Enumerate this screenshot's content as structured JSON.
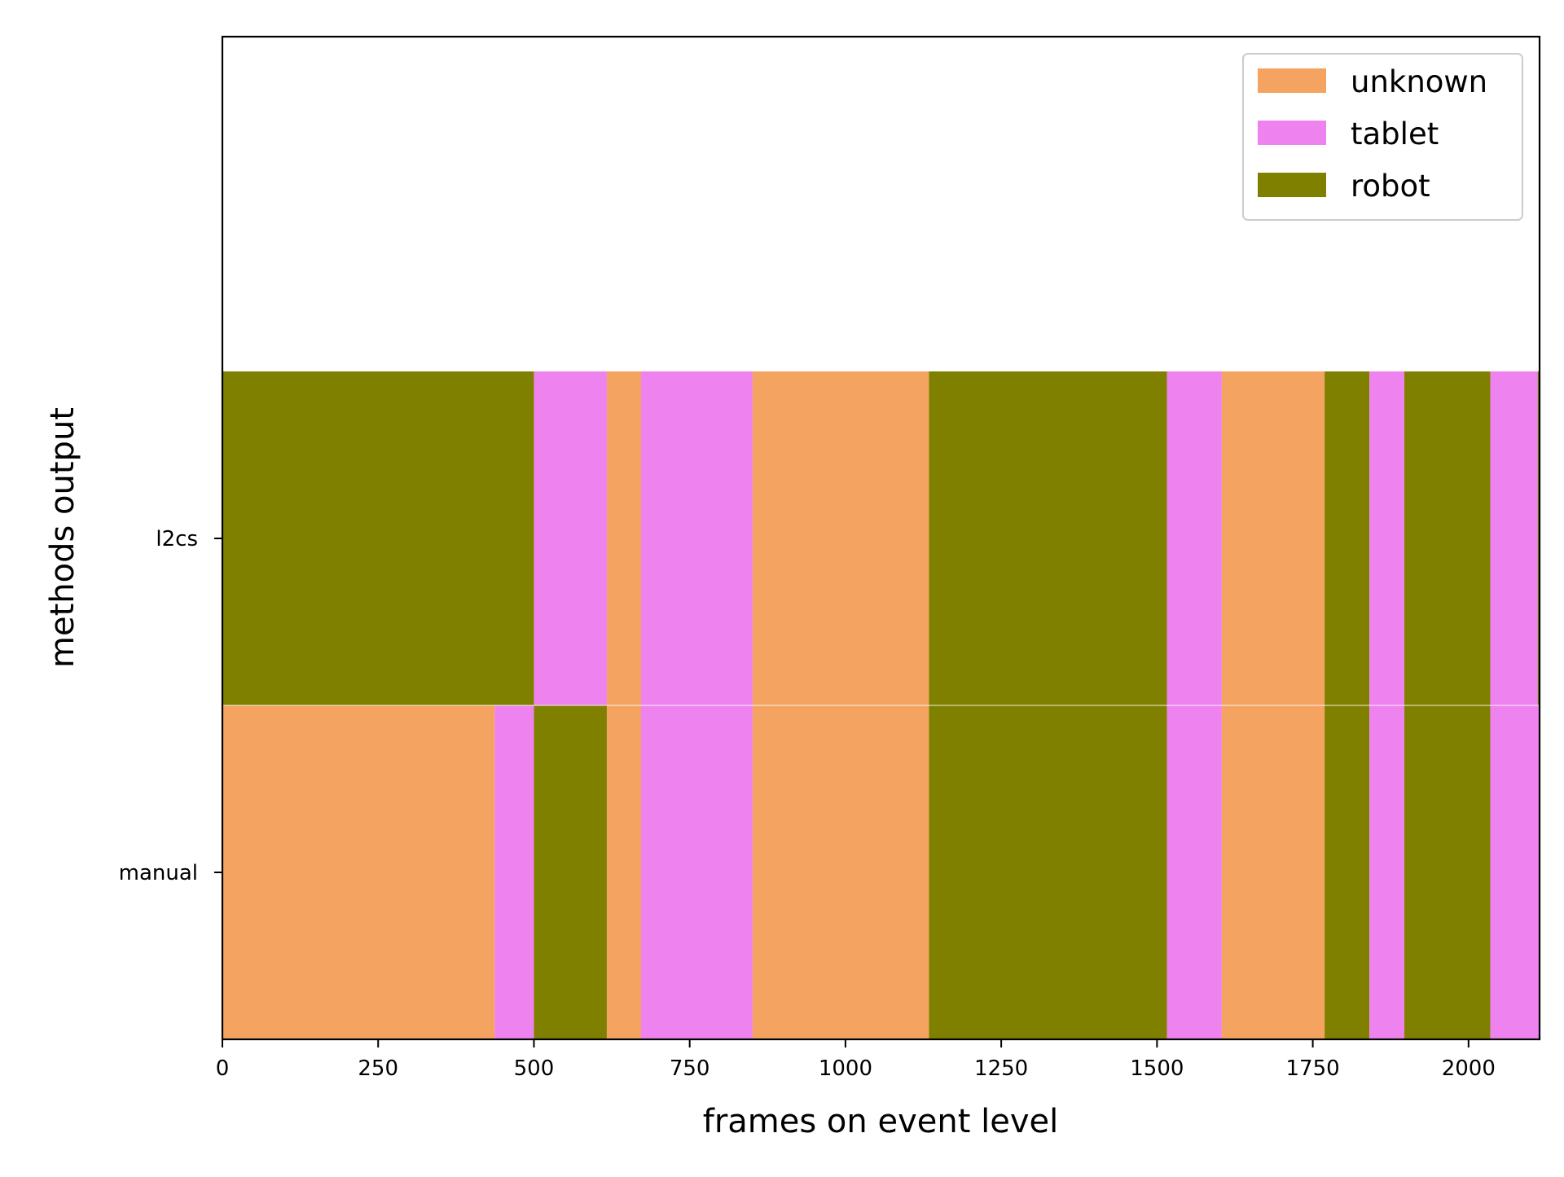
{
  "chart_data": {
    "type": "bar",
    "orientation": "horizontal-stacked-timeline",
    "title": "",
    "xlabel": "frames on event level",
    "ylabel": "methods output",
    "xlim": [
      0,
      2114
    ],
    "xticks": [
      0,
      250,
      500,
      750,
      1000,
      1250,
      1500,
      1750,
      2000
    ],
    "xtick_labels": [
      "0",
      "250",
      "500",
      "750",
      "1000",
      "1250",
      "1500",
      "1750",
      "2000"
    ],
    "categories": [
      "manual",
      "l2cs"
    ],
    "colors": {
      "unknown": "#F4A460",
      "tablet": "#EE82EE",
      "robot": "#808000"
    },
    "legend": {
      "placement": "top-right",
      "entries": [
        "unknown",
        "tablet",
        "robot"
      ]
    },
    "series": [
      {
        "name": "manual",
        "segments": [
          {
            "label": "unknown",
            "start": 0,
            "end": 437
          },
          {
            "label": "tablet",
            "start": 437,
            "end": 500
          },
          {
            "label": "robot",
            "start": 500,
            "end": 617
          },
          {
            "label": "unknown",
            "start": 617,
            "end": 672
          },
          {
            "label": "tablet",
            "start": 672,
            "end": 851
          },
          {
            "label": "unknown",
            "start": 851,
            "end": 1134
          },
          {
            "label": "robot",
            "start": 1134,
            "end": 1516
          },
          {
            "label": "tablet",
            "start": 1516,
            "end": 1604
          },
          {
            "label": "unknown",
            "start": 1604,
            "end": 1769
          },
          {
            "label": "robot",
            "start": 1769,
            "end": 1841
          },
          {
            "label": "tablet",
            "start": 1841,
            "end": 1897
          },
          {
            "label": "robot",
            "start": 1897,
            "end": 2035
          },
          {
            "label": "tablet",
            "start": 2035,
            "end": 2114
          }
        ]
      },
      {
        "name": "l2cs",
        "segments": [
          {
            "label": "robot",
            "start": 0,
            "end": 500
          },
          {
            "label": "tablet",
            "start": 500,
            "end": 617
          },
          {
            "label": "unknown",
            "start": 617,
            "end": 672
          },
          {
            "label": "tablet",
            "start": 672,
            "end": 851
          },
          {
            "label": "unknown",
            "start": 851,
            "end": 1134
          },
          {
            "label": "robot",
            "start": 1134,
            "end": 1516
          },
          {
            "label": "tablet",
            "start": 1516,
            "end": 1604
          },
          {
            "label": "unknown",
            "start": 1604,
            "end": 1769
          },
          {
            "label": "robot",
            "start": 1769,
            "end": 1841
          },
          {
            "label": "tablet",
            "start": 1841,
            "end": 1897
          },
          {
            "label": "robot",
            "start": 1897,
            "end": 2035
          },
          {
            "label": "tablet",
            "start": 2035,
            "end": 2111
          },
          {
            "label": "robot",
            "start": 2111,
            "end": 2114
          }
        ]
      }
    ],
    "grid": false
  }
}
